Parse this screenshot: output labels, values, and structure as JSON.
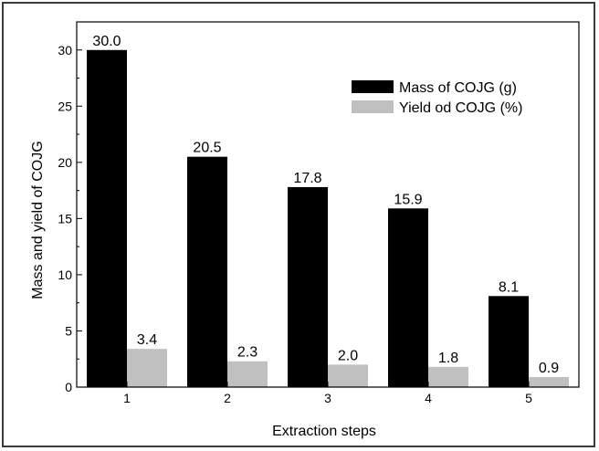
{
  "chart_data": {
    "type": "bar",
    "title": "",
    "xlabel": "Extraction steps",
    "ylabel": "Mass and yield of COJG",
    "categories": [
      "1",
      "2",
      "3",
      "4",
      "5"
    ],
    "series": [
      {
        "name": "Mass of COJG (g)",
        "values": [
          30.0,
          20.5,
          17.8,
          15.9,
          8.1
        ],
        "labels": [
          "30.0",
          "20.5",
          "17.8",
          "15.9",
          "8.1"
        ],
        "color": "#000000"
      },
      {
        "name": "Yield od COJG (%)",
        "values": [
          3.4,
          2.3,
          2.0,
          1.8,
          0.9
        ],
        "labels": [
          "3.4",
          "2.3",
          "2.0",
          "1.8",
          "0.9"
        ],
        "color": "#c0c0c0"
      }
    ],
    "ylim": [
      0,
      32.5
    ],
    "yticks": [
      0,
      5,
      10,
      15,
      20,
      25,
      30
    ],
    "ytick_labels": [
      "0",
      "5",
      "10",
      "15",
      "20",
      "25",
      "30"
    ],
    "grid": false,
    "legend_position": "top-right"
  }
}
